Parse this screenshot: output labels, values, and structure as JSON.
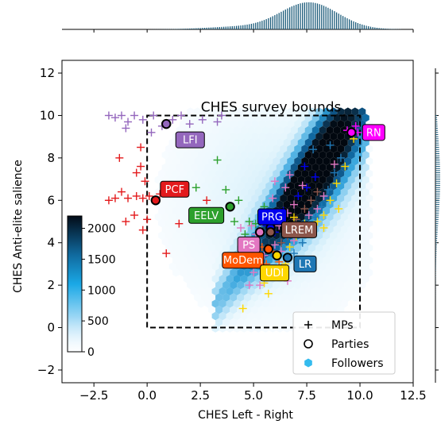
{
  "chart_data": {
    "type": "scatter",
    "title": "",
    "xlabel": "CHES Left - Right",
    "ylabel": "CHES Anti-elite salience",
    "xlim": [
      -4,
      12.5
    ],
    "ylim": [
      -2.6,
      12.6
    ],
    "xticks": [
      -2.5,
      0.0,
      2.5,
      5.0,
      7.5,
      10.0,
      12.5
    ],
    "xtick_labels": [
      "−2.5",
      "0.0",
      "2.5",
      "5.0",
      "7.5",
      "10.0",
      "12.5"
    ],
    "yticks": [
      -2,
      0,
      2,
      4,
      6,
      8,
      10,
      12
    ],
    "ytick_labels": [
      "−2",
      "0",
      "2",
      "4",
      "6",
      "8",
      "10",
      "12"
    ],
    "grid": false,
    "annotation": {
      "text": "CHES survey bounds",
      "x0": 0,
      "x1": 10,
      "y0": 0,
      "y1": 10
    },
    "colorbar": {
      "ticks": [
        0,
        500,
        1000,
        1500,
        2000
      ],
      "tick_labels": [
        "0",
        "500",
        "1000",
        "1500",
        "2000"
      ],
      "max": 2200
    },
    "legend": {
      "placement": "lower-right",
      "entries": [
        {
          "marker": "plus",
          "label": "MPs"
        },
        {
          "marker": "circle",
          "label": "Parties"
        },
        {
          "marker": "hexagon",
          "label": "Followers"
        }
      ]
    },
    "parties": [
      {
        "name": "LFI",
        "x": 0.9,
        "y": 9.6,
        "color": "#9467bd",
        "text_color": "#ffffff"
      },
      {
        "name": "PCF",
        "x": 0.4,
        "y": 6.0,
        "color": "#e31a1c",
        "text_color": "#ffffff"
      },
      {
        "name": "EELV",
        "x": 3.9,
        "y": 5.7,
        "color": "#2ca02c",
        "text_color": "#ffffff"
      },
      {
        "name": "PRG",
        "x": 5.8,
        "y": 4.7,
        "color": "#0000ee",
        "text_color": "#ffffff"
      },
      {
        "name": "PS",
        "x": 5.3,
        "y": 4.5,
        "color": "#e377c2",
        "text_color": "#ffffff"
      },
      {
        "name": "LREM",
        "x": 5.8,
        "y": 4.5,
        "color": "#8c564b",
        "text_color": "#ffffff"
      },
      {
        "name": "MoDem",
        "x": 5.7,
        "y": 3.7,
        "color": "#ff5500",
        "text_color": "#ffffff"
      },
      {
        "name": "LR",
        "x": 6.6,
        "y": 3.3,
        "color": "#1f77b4",
        "text_color": "#ffffff"
      },
      {
        "name": "UDI",
        "x": 6.1,
        "y": 3.4,
        "color": "#ffd700",
        "text_color": "#ffffff"
      },
      {
        "name": "RN",
        "x": 9.6,
        "y": 9.2,
        "color": "#ff00ff",
        "text_color": "#ffffff"
      }
    ],
    "mps": [
      {
        "group": "LFI",
        "color": "#9467bd",
        "points": [
          [
            -1.8,
            10
          ],
          [
            -1.5,
            9.9
          ],
          [
            -1.2,
            10
          ],
          [
            -0.9,
            9.7
          ],
          [
            -0.6,
            10
          ],
          [
            -0.2,
            9.8
          ],
          [
            0.3,
            10
          ],
          [
            0.7,
            9.5
          ],
          [
            1.2,
            9.8
          ],
          [
            1.6,
            10
          ],
          [
            2.0,
            9.6
          ],
          [
            2.6,
            9.8
          ],
          [
            3.3,
            9.7
          ],
          [
            3.5,
            10
          ],
          [
            -1.0,
            9.4
          ],
          [
            0.2,
            9.2
          ]
        ]
      },
      {
        "group": "PCF",
        "color": "#e31a1c",
        "points": [
          [
            -1.8,
            6
          ],
          [
            -1.5,
            6.1
          ],
          [
            -1.2,
            6.4
          ],
          [
            -0.9,
            6.1
          ],
          [
            -0.5,
            6.2
          ],
          [
            -0.3,
            7.6
          ],
          [
            -0.1,
            6.9
          ],
          [
            -0.2,
            6.1
          ],
          [
            -1.0,
            5.0
          ],
          [
            -0.6,
            5.3
          ],
          [
            -0.2,
            4.6
          ],
          [
            0.0,
            5.1
          ],
          [
            -0.5,
            7.3
          ],
          [
            -0.3,
            8.5
          ],
          [
            0.1,
            6.2
          ],
          [
            0.6,
            6.3
          ],
          [
            1.1,
            6.5
          ],
          [
            1.5,
            4.9
          ],
          [
            2.8,
            6.0
          ],
          [
            -1.3,
            8.0
          ],
          [
            0.9,
            3.5
          ]
        ]
      },
      {
        "group": "EELV",
        "color": "#2ca02c",
        "points": [
          [
            2.3,
            6.6
          ],
          [
            3.3,
            7.9
          ],
          [
            4.8,
            5.0
          ],
          [
            4.6,
            4.4
          ],
          [
            4.3,
            6.0
          ],
          [
            4.1,
            5.0
          ],
          [
            3.7,
            6.5
          ],
          [
            5.5,
            5.7
          ],
          [
            5.1,
            4.9
          ]
        ]
      },
      {
        "group": "PRG",
        "color": "#0000ee",
        "points": [
          [
            5.6,
            4.8
          ],
          [
            5.9,
            5.0
          ],
          [
            6.4,
            5.5
          ],
          [
            7.1,
            6.2
          ],
          [
            7.5,
            6.6
          ],
          [
            7.4,
            7.6
          ],
          [
            6.0,
            4.5
          ],
          [
            7.9,
            7.1
          ]
        ]
      },
      {
        "group": "PS",
        "color": "#e377c2",
        "points": [
          [
            4.7,
            3.8
          ],
          [
            4.6,
            3.5
          ],
          [
            4.9,
            3.0
          ],
          [
            5.1,
            4.4
          ],
          [
            5.3,
            4.6
          ],
          [
            5.5,
            3.4
          ],
          [
            5.7,
            2.6
          ],
          [
            5.0,
            2.6
          ],
          [
            5.3,
            2.0
          ],
          [
            5.8,
            2.4
          ],
          [
            6.0,
            3.9
          ],
          [
            6.3,
            3.6
          ],
          [
            6.6,
            2.2
          ],
          [
            6.9,
            4.1
          ],
          [
            7.2,
            4.6
          ],
          [
            7.6,
            5.3
          ],
          [
            8.0,
            5.6
          ],
          [
            8.3,
            6.2
          ],
          [
            8.8,
            7.7
          ],
          [
            6.2,
            4.8
          ],
          [
            6.6,
            5.4
          ],
          [
            6.9,
            5.8
          ],
          [
            5.9,
            6.1
          ],
          [
            6.5,
            6.6
          ],
          [
            7.3,
            6.7
          ],
          [
            4.4,
            4.7
          ],
          [
            4.9,
            4.8
          ],
          [
            5.4,
            5.0
          ],
          [
            4.5,
            3.1
          ],
          [
            4.8,
            2.0
          ],
          [
            6.0,
            6.9
          ],
          [
            6.7,
            7.2
          ],
          [
            5.6,
            5.4
          ]
        ]
      },
      {
        "group": "LREM",
        "color": "#8c564b",
        "points": [
          [
            6.3,
            4.0
          ],
          [
            6.6,
            4.3
          ],
          [
            7.0,
            5.1
          ],
          [
            7.4,
            5.6
          ],
          [
            7.7,
            6.0
          ],
          [
            8.0,
            6.4
          ]
        ]
      },
      {
        "group": "MoDem",
        "color": "#ff5500",
        "points": [
          [
            5.4,
            3.8
          ],
          [
            5.9,
            3.6
          ],
          [
            6.2,
            3.1
          ],
          [
            5.6,
            3.0
          ]
        ]
      },
      {
        "group": "LR",
        "color": "#1f77b4",
        "points": [
          [
            6.9,
            3.5
          ],
          [
            7.3,
            4.0
          ],
          [
            7.6,
            4.7
          ],
          [
            7.9,
            5.2
          ],
          [
            8.2,
            5.7
          ],
          [
            8.5,
            6.5
          ],
          [
            8.8,
            7.3
          ],
          [
            9.1,
            8.0
          ],
          [
            8.6,
            8.6
          ],
          [
            7.8,
            8.4
          ],
          [
            6.3,
            2.8
          ]
        ]
      },
      {
        "group": "UDI",
        "color": "#ffd700",
        "points": [
          [
            4.5,
            0.9
          ],
          [
            5.7,
            1.6
          ],
          [
            5.5,
            2.1
          ],
          [
            6.0,
            2.7
          ],
          [
            6.7,
            3.8
          ],
          [
            7.0,
            4.3
          ],
          [
            7.4,
            4.9
          ],
          [
            7.7,
            4.4
          ],
          [
            8.0,
            5.0
          ],
          [
            8.3,
            5.3
          ],
          [
            8.6,
            6.0
          ],
          [
            8.9,
            6.8
          ],
          [
            9.3,
            7.6
          ],
          [
            9.0,
            5.6
          ],
          [
            6.5,
            3.0
          ],
          [
            9.7,
            8.9
          ],
          [
            8.3,
            4.7
          ],
          [
            6.9,
            5.2
          ]
        ]
      },
      {
        "group": "RN",
        "color": "#ff00ff",
        "points": [
          [
            9.4,
            9.3
          ],
          [
            9.8,
            9.5
          ],
          [
            9.9,
            9.2
          ]
        ]
      }
    ]
  }
}
